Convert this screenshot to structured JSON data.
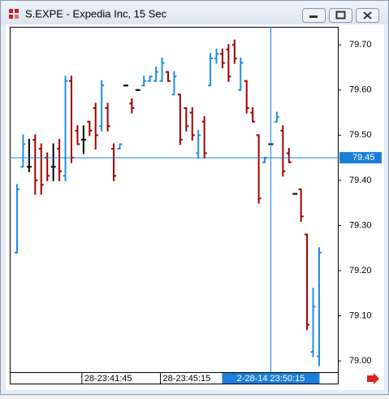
{
  "chart_data": {
    "type": "ohlc",
    "title": "S.EXPE - Expedia Inc, 15 Sec",
    "categories": [
      null,
      null,
      null,
      null,
      null,
      null,
      null,
      null,
      null,
      null,
      null,
      "28-23:41:45",
      null,
      null,
      null,
      null,
      null,
      null,
      null,
      null,
      null,
      null,
      null,
      null,
      "28-23:45:15",
      null,
      null,
      null,
      null,
      null,
      null,
      null,
      null,
      null,
      null,
      null,
      null,
      null,
      null,
      null,
      null,
      null,
      "2-28-14  23:50:15",
      null,
      null,
      null,
      null,
      null,
      null,
      null,
      null
    ],
    "series": [
      {
        "name": "open",
        "values": [
          79.24,
          79.43,
          79.43,
          79.49,
          79.47,
          79.45,
          79.43,
          79.47,
          79.41,
          79.62,
          79.51,
          79.49,
          79.53,
          79.56,
          79.52,
          79.56,
          79.47,
          79.47,
          79.61,
          79.57,
          79.6,
          79.61,
          79.62,
          79.62,
          79.62,
          79.64,
          79.59,
          79.59,
          79.56,
          79.55,
          79.46,
          79.53,
          79.61,
          79.67,
          79.68,
          79.69,
          79.7,
          79.6,
          79.62,
          79.55,
          79.5,
          79.44,
          79.48,
          79.53,
          79.51,
          79.46,
          79.37,
          79.38,
          79.28,
          79.02,
          79.01
        ]
      },
      {
        "name": "high",
        "values": [
          79.39,
          79.5,
          79.49,
          79.5,
          79.48,
          79.46,
          79.48,
          79.49,
          79.63,
          79.63,
          79.52,
          79.52,
          79.53,
          79.57,
          79.62,
          79.57,
          79.48,
          79.48,
          79.61,
          79.58,
          79.6,
          79.63,
          79.63,
          79.65,
          79.67,
          79.64,
          79.64,
          79.59,
          79.56,
          79.56,
          79.51,
          79.54,
          79.68,
          79.69,
          79.69,
          79.7,
          79.71,
          79.67,
          79.62,
          79.56,
          79.5,
          79.45,
          79.48,
          79.55,
          79.52,
          79.47,
          79.37,
          79.38,
          79.28,
          79.16,
          79.25
        ]
      },
      {
        "name": "low",
        "values": [
          79.24,
          79.43,
          79.42,
          79.37,
          79.37,
          79.4,
          79.4,
          79.4,
          79.4,
          79.44,
          79.48,
          79.46,
          79.5,
          79.47,
          79.51,
          79.51,
          79.4,
          79.47,
          79.61,
          79.55,
          79.6,
          79.61,
          79.62,
          79.62,
          79.62,
          79.62,
          79.59,
          79.48,
          79.51,
          79.49,
          79.45,
          79.45,
          79.61,
          79.66,
          79.65,
          79.62,
          79.66,
          79.6,
          79.55,
          79.53,
          79.35,
          79.44,
          79.48,
          79.53,
          79.41,
          79.44,
          79.37,
          79.31,
          79.07,
          79.01,
          78.99
        ]
      },
      {
        "name": "close",
        "values": [
          79.38,
          79.48,
          79.43,
          79.4,
          79.39,
          79.41,
          79.43,
          79.42,
          79.62,
          79.45,
          79.48,
          79.49,
          79.51,
          79.5,
          79.61,
          79.52,
          79.41,
          79.48,
          79.61,
          79.56,
          79.6,
          79.62,
          79.63,
          79.64,
          79.66,
          79.62,
          79.63,
          79.49,
          79.52,
          79.5,
          79.5,
          79.46,
          79.67,
          79.68,
          79.66,
          79.63,
          79.67,
          79.66,
          79.56,
          79.53,
          79.36,
          79.45,
          79.48,
          79.54,
          79.42,
          79.44,
          79.37,
          79.32,
          79.08,
          79.12,
          79.24
        ]
      }
    ],
    "up_color": "#1e8fe0",
    "down_color": "#a00000",
    "flat_color": "#000000",
    "ylim": [
      78.975,
      79.74
    ],
    "yticks": [
      {
        "value": 79.0,
        "label": "79.00"
      },
      {
        "value": 79.1,
        "label": "79.10"
      },
      {
        "value": 79.2,
        "label": "79.20"
      },
      {
        "value": 79.3,
        "label": "79.30"
      },
      {
        "value": 79.4,
        "label": "79.40"
      },
      {
        "value": 79.5,
        "label": "79.50"
      },
      {
        "value": 79.6,
        "label": "79.60"
      },
      {
        "value": 79.7,
        "label": "79.70"
      }
    ],
    "crosshair": {
      "category_index": 42,
      "value": 79.45
    },
    "grid": false
  }
}
